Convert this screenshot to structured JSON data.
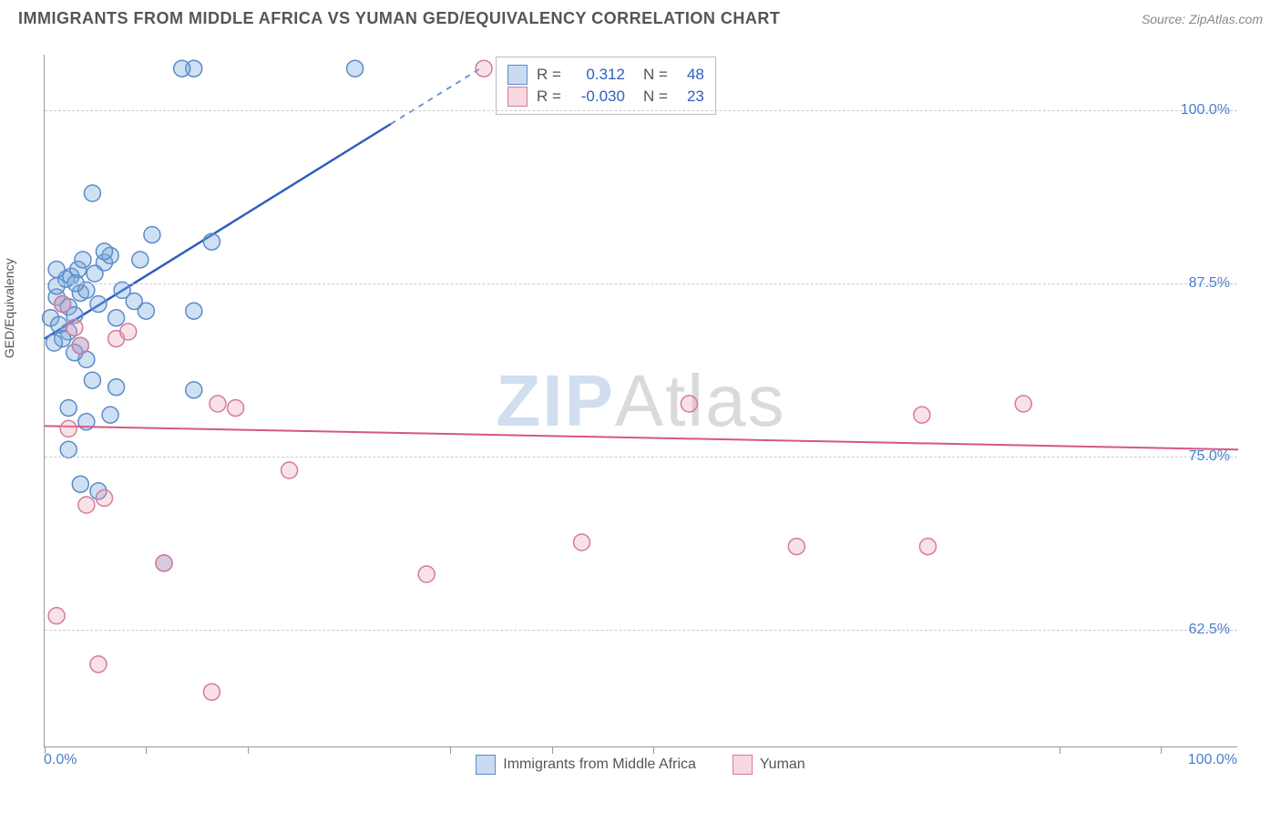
{
  "title": "IMMIGRANTS FROM MIDDLE AFRICA VS YUMAN GED/EQUIVALENCY CORRELATION CHART",
  "source": "Source: ZipAtlas.com",
  "y_axis_title": "GED/Equivalency",
  "watermark_zip": "ZIP",
  "watermark_atlas": "Atlas",
  "chart": {
    "type": "scatter",
    "background_color": "#ffffff",
    "grid_color": "#cccccc",
    "axis_color": "#999999",
    "xlim": [
      0.0,
      100.0
    ],
    "ylim": [
      54.0,
      104.0
    ],
    "x_tick_positions": [
      0,
      8.5,
      17,
      34,
      42.5,
      51,
      85,
      93.5
    ],
    "y_gridlines": [
      {
        "value": 62.5,
        "label": "62.5%"
      },
      {
        "value": 75.0,
        "label": "75.0%"
      },
      {
        "value": 87.5,
        "label": "87.5%"
      },
      {
        "value": 100.0,
        "label": "100.0%"
      }
    ],
    "x_label_min": "0.0%",
    "x_label_max": "100.0%",
    "marker_radius": 9,
    "series": [
      {
        "name": "Immigrants from Middle Africa",
        "marker_class": "marker-blue",
        "swatch_class": "blue",
        "points": [
          [
            1.0,
            86.5
          ],
          [
            1.5,
            86.0
          ],
          [
            2.0,
            85.8
          ],
          [
            2.5,
            85.2
          ],
          [
            3.0,
            86.8
          ],
          [
            3.5,
            87.0
          ],
          [
            1.0,
            87.3
          ],
          [
            1.8,
            87.8
          ],
          [
            2.2,
            88.0
          ],
          [
            0.5,
            85.0
          ],
          [
            2.0,
            84.0
          ],
          [
            3.0,
            83.0
          ],
          [
            3.5,
            82.0
          ],
          [
            1.5,
            83.5
          ],
          [
            2.5,
            82.5
          ],
          [
            4.0,
            94.0
          ],
          [
            12.5,
            103.0
          ],
          [
            26.0,
            103.0
          ],
          [
            5.0,
            89.0
          ],
          [
            5.5,
            89.5
          ],
          [
            8.0,
            89.2
          ],
          [
            9.0,
            91.0
          ],
          [
            11.5,
            103.0
          ],
          [
            14.0,
            90.5
          ],
          [
            4.5,
            86.0
          ],
          [
            6.5,
            87.0
          ],
          [
            8.5,
            85.5
          ],
          [
            12.5,
            85.5
          ],
          [
            4.0,
            80.5
          ],
          [
            6.0,
            80.0
          ],
          [
            12.5,
            79.8
          ],
          [
            2.0,
            78.5
          ],
          [
            3.5,
            77.5
          ],
          [
            5.5,
            78.0
          ],
          [
            10.0,
            67.3
          ],
          [
            3.0,
            73.0
          ],
          [
            4.5,
            72.5
          ],
          [
            2.0,
            75.5
          ],
          [
            5.0,
            89.8
          ],
          [
            1.0,
            88.5
          ],
          [
            2.8,
            88.5
          ],
          [
            1.2,
            84.5
          ],
          [
            0.8,
            83.2
          ],
          [
            3.2,
            89.2
          ],
          [
            4.2,
            88.2
          ],
          [
            2.6,
            87.5
          ],
          [
            6.0,
            85.0
          ],
          [
            7.5,
            86.2
          ]
        ],
        "trend": {
          "x1": 0,
          "y1": 83.5,
          "x2": 29,
          "y2": 99.0,
          "dash_to": [
            36.5,
            103.0
          ]
        },
        "R": "0.312",
        "N": "48"
      },
      {
        "name": "Yuman",
        "marker_class": "marker-pink",
        "swatch_class": "pink",
        "points": [
          [
            2.5,
            84.3
          ],
          [
            6.0,
            83.5
          ],
          [
            1.5,
            86.0
          ],
          [
            36.8,
            103.0
          ],
          [
            1.0,
            63.5
          ],
          [
            4.5,
            60.0
          ],
          [
            3.5,
            71.5
          ],
          [
            14.0,
            58.0
          ],
          [
            10.0,
            67.3
          ],
          [
            14.5,
            78.8
          ],
          [
            16.0,
            78.5
          ],
          [
            20.5,
            74.0
          ],
          [
            32.0,
            66.5
          ],
          [
            45.0,
            68.8
          ],
          [
            54.0,
            78.8
          ],
          [
            63.0,
            68.5
          ],
          [
            73.5,
            78.0
          ],
          [
            74.0,
            68.5
          ],
          [
            82.0,
            78.8
          ],
          [
            3.0,
            83.0
          ],
          [
            5.0,
            72.0
          ],
          [
            7.0,
            84.0
          ],
          [
            2.0,
            77.0
          ]
        ],
        "trend": {
          "x1": 0,
          "y1": 77.2,
          "x2": 100,
          "y2": 75.5
        },
        "R": "-0.030",
        "N": "23"
      }
    ]
  },
  "stat_box": {
    "R_label": "R =",
    "N_label": "N ="
  },
  "colors": {
    "blue_line": "#2e5fbf",
    "blue_marker_fill": "rgba(121,166,220,0.35)",
    "blue_marker_stroke": "#5a8cc9",
    "pink_line": "#d6577f",
    "pink_marker_fill": "rgba(236,155,178,0.3)",
    "pink_marker_stroke": "#d67b99",
    "tick_label": "#4a7ecc"
  }
}
